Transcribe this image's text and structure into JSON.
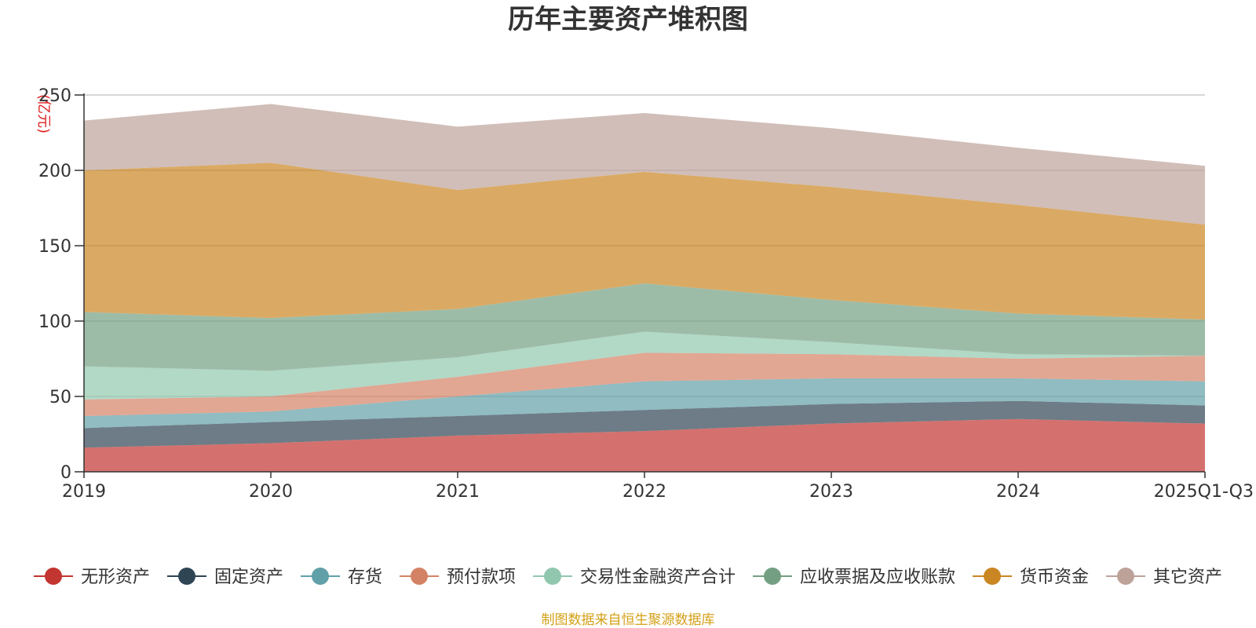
{
  "chart_data": {
    "type": "area",
    "stacked": true,
    "title": "历年主要资产堆积图",
    "ylabel": "(亿元)",
    "xlabel": "",
    "ylim": [
      0,
      250
    ],
    "yticks": [
      0,
      50,
      100,
      150,
      200,
      250
    ],
    "categories": [
      "2019",
      "2020",
      "2021",
      "2022",
      "2023",
      "2024",
      "2025Q1-Q3"
    ],
    "series": [
      {
        "name": "无形资产",
        "color": "#c23531",
        "values": [
          16,
          19,
          24,
          27,
          32,
          35,
          32
        ]
      },
      {
        "name": "固定资产",
        "color": "#2f4554",
        "values": [
          13,
          14,
          13,
          14,
          13,
          12,
          12
        ]
      },
      {
        "name": "存货",
        "color": "#61a0a8",
        "values": [
          8,
          7,
          13,
          19,
          17,
          15,
          16
        ]
      },
      {
        "name": "预付款项",
        "color": "#d48265",
        "values": [
          11,
          10,
          13,
          19,
          16,
          13,
          17
        ]
      },
      {
        "name": "交易性金融资产合计",
        "color": "#91c7ae",
        "values": [
          22,
          17,
          13,
          14,
          8,
          3,
          0
        ]
      },
      {
        "name": "应收票据及应收账款",
        "color": "#749f83",
        "values": [
          36,
          35,
          32,
          32,
          28,
          27,
          24
        ]
      },
      {
        "name": "货币资金",
        "color": "#ca8622",
        "values": [
          94,
          103,
          79,
          74,
          75,
          72,
          63
        ]
      },
      {
        "name": "其它资产",
        "color": "#bda29a",
        "values": [
          33,
          39,
          42,
          39,
          39,
          38,
          39
        ]
      }
    ],
    "legend_position": "bottom",
    "grid": true
  },
  "source_note": "制图数据来自恒生聚源数据库"
}
